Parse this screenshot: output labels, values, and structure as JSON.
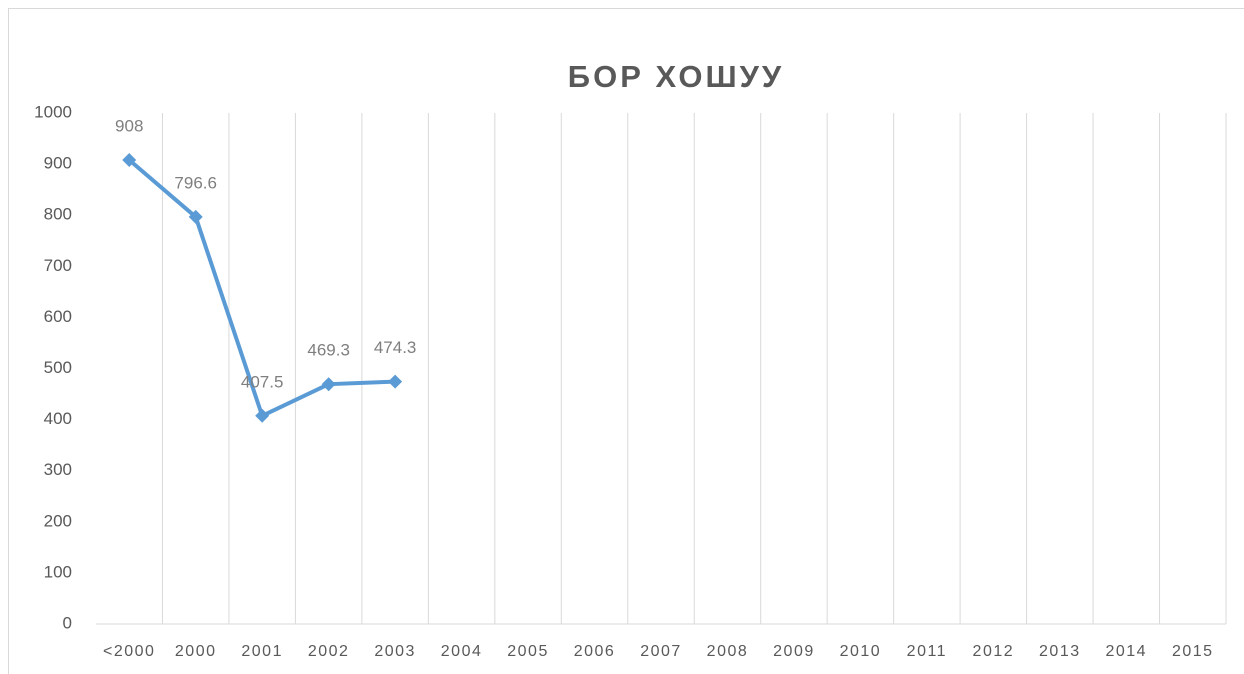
{
  "chart_data": {
    "type": "line",
    "title": "БОР ХОШУУ",
    "categories": [
      "<2000",
      "2000",
      "2001",
      "2002",
      "2003",
      "2004",
      "2005",
      "2006",
      "2007",
      "2008",
      "2009",
      "2010",
      "2011",
      "2012",
      "2013",
      "2014",
      "2015"
    ],
    "series": [
      {
        "name": "БОР ХОШУУ",
        "color": "#5b9bd5",
        "values": [
          908,
          796.6,
          407.5,
          469.3,
          474.3,
          null,
          null,
          null,
          null,
          null,
          null,
          null,
          null,
          null,
          null,
          null,
          null
        ]
      }
    ],
    "ylim": [
      0,
      1000
    ],
    "yticks": [
      0,
      100,
      200,
      300,
      400,
      500,
      600,
      700,
      800,
      900,
      1000
    ],
    "grid": true
  }
}
